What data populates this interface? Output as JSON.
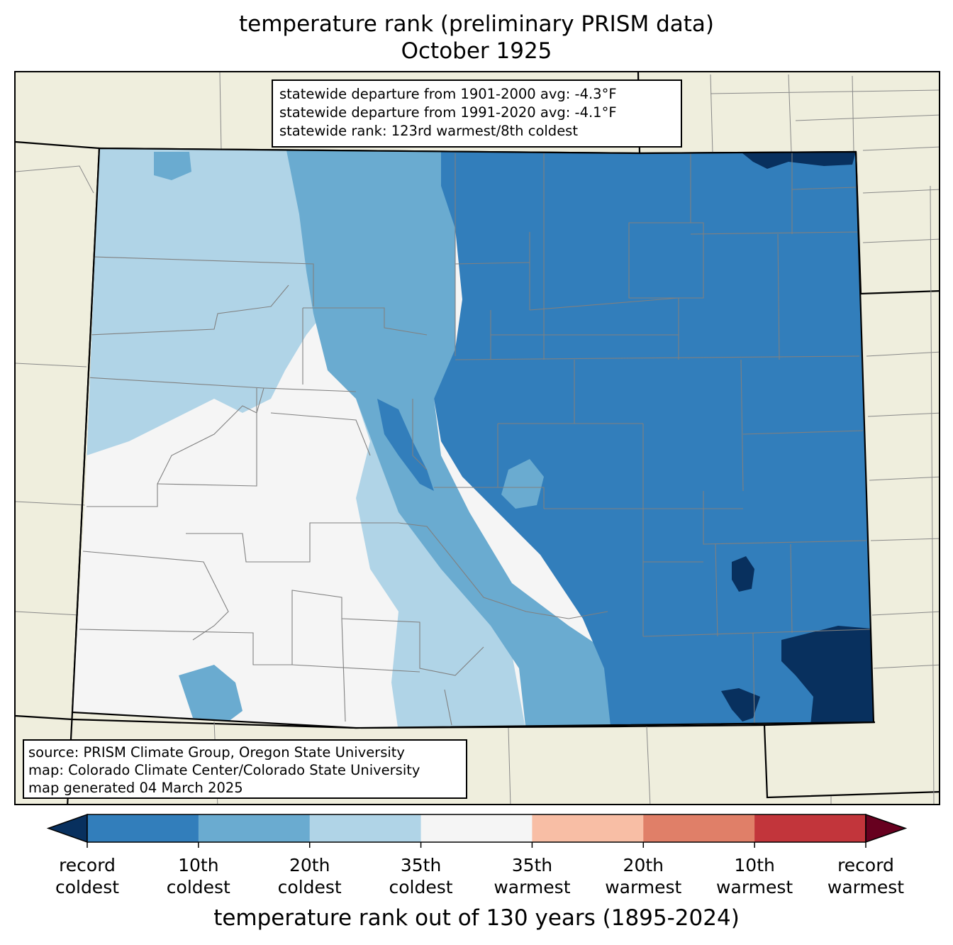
{
  "title": {
    "line1": "temperature rank (preliminary PRISM data)",
    "line2": "October 1925"
  },
  "stats": {
    "departure_1901_2000": "statewide departure from 1901-2000 avg: -4.3°F",
    "departure_1991_2020": "statewide departure from 1991-2020 avg: -4.1°F",
    "rank": "statewide rank: 123rd warmest/8th coldest"
  },
  "source": {
    "line1": "source: PRISM Climate Group, Oregon State University",
    "line2": "map: Colorado Climate Center/Colorado State University",
    "line3": "map generated 04 March 2025"
  },
  "colors": {
    "background_land": "#efeedd",
    "record_coldest_ext": "#08305e",
    "rank_1_10_cold": "#327ebb",
    "rank_10_20_cold": "#6aabd0",
    "rank_20_35_cold": "#b0d4e7",
    "near_normal": "#f5f5f5",
    "rank_20_35_warm": "#f8bea5",
    "rank_10_20_warm": "#e07f68",
    "rank_1_10_warm": "#c2353b",
    "record_warmest_ext": "#67001f",
    "state_border": "#000000",
    "county_border": "#808080"
  },
  "colorbar": {
    "segments": [
      {
        "color": "#327ebb"
      },
      {
        "color": "#6aabd0"
      },
      {
        "color": "#b0d4e7"
      },
      {
        "color": "#f5f5f5"
      },
      {
        "color": "#f8bea5"
      },
      {
        "color": "#e07f68"
      },
      {
        "color": "#c2353b"
      }
    ],
    "ticks": [
      {
        "line1": "record",
        "line2": "coldest"
      },
      {
        "line1": "10th",
        "line2": "coldest"
      },
      {
        "line1": "20th",
        "line2": "coldest"
      },
      {
        "line1": "35th",
        "line2": "coldest"
      },
      {
        "line1": "35th",
        "line2": "warmest"
      },
      {
        "line1": "20th",
        "line2": "warmest"
      },
      {
        "line1": "10th",
        "line2": "warmest"
      },
      {
        "line1": "record",
        "line2": "warmest"
      }
    ],
    "label": "temperature rank out of 130 years (1895-2024)"
  }
}
